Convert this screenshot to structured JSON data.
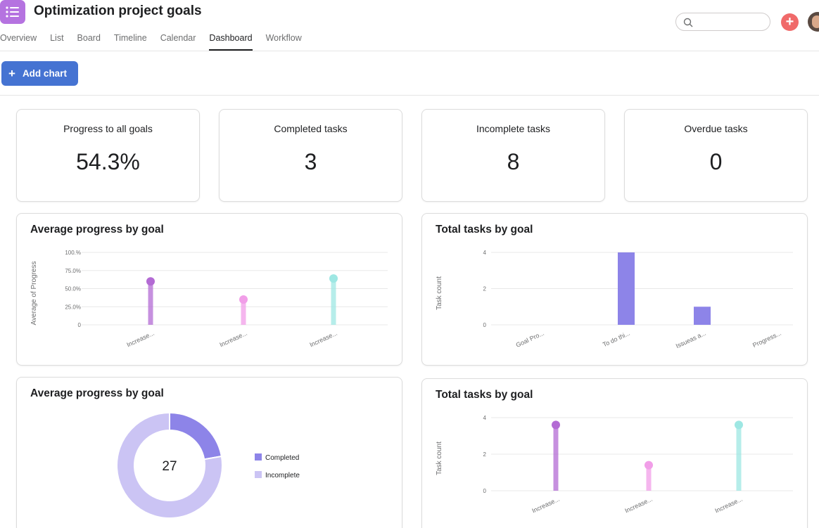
{
  "header": {
    "title": "Optimization project goals",
    "tabs": [
      {
        "label": "Overview",
        "active": false
      },
      {
        "label": "List",
        "active": false
      },
      {
        "label": "Board",
        "active": false
      },
      {
        "label": "Timeline",
        "active": false
      },
      {
        "label": "Calendar",
        "active": false
      },
      {
        "label": "Dashboard",
        "active": true
      },
      {
        "label": "Workflow",
        "active": false
      }
    ],
    "search_placeholder": "",
    "icons": {
      "app": "list-icon",
      "search": "search-icon",
      "add": "plus-icon",
      "avatar": "avatar"
    }
  },
  "toolbar": {
    "add_chart_label": "Add chart",
    "add_chart_icon": "+"
  },
  "stats": [
    {
      "label": "Progress to all goals",
      "value": "54.3%"
    },
    {
      "label": "Completed tasks",
      "value": "3"
    },
    {
      "label": "Incomplete tasks",
      "value": "8"
    },
    {
      "label": "Overdue tasks",
      "value": "0"
    }
  ],
  "colors": {
    "accent_blue": "#4573d2",
    "add_red": "#f06a6a",
    "app_purple": "#b573e0",
    "bar_purple": "#8d84e8",
    "lollipop_purple": "#b36bd4",
    "lollipop_pink": "#f19ee8",
    "lollipop_teal": "#9ee7e3",
    "donut_completed": "#8d84e8",
    "donut_incomplete": "#cbc4f4"
  },
  "chart_data": [
    {
      "type": "lollipop",
      "title": "Average progress by goal",
      "ylabel": "Average of Progress",
      "yticks": [
        "100.%",
        "75.0%",
        "50.0%",
        "25.0%",
        "0"
      ],
      "ylim": [
        0,
        100
      ],
      "categories": [
        "Increase...",
        "Increase...",
        "Increase..."
      ],
      "values": [
        60,
        35,
        64
      ],
      "colors": [
        "#b36bd4",
        "#f19ee8",
        "#9ee7e3"
      ],
      "grid": true
    },
    {
      "type": "bar",
      "title": "Total tasks by goal",
      "ylabel": "Task count",
      "yticks": [
        "4",
        "2",
        "0"
      ],
      "ylim": [
        0,
        4
      ],
      "categories": [
        "Goal Pro...",
        "To do thi...",
        "Issueas a...",
        "Progress..."
      ],
      "values": [
        0,
        4,
        1,
        0
      ],
      "color": "#8d84e8",
      "grid": true
    },
    {
      "type": "pie",
      "title": "Average progress by goal",
      "center_label": "27",
      "legend": [
        "Completed",
        "Incomplete"
      ],
      "values": [
        6,
        21
      ],
      "colors": [
        "#8d84e8",
        "#cbc4f4"
      ],
      "legend_position": "right"
    },
    {
      "type": "lollipop",
      "title": "Total tasks by goal",
      "ylabel": "Task count",
      "yticks": [
        "4",
        "2",
        "0"
      ],
      "ylim": [
        0,
        4
      ],
      "categories": [
        "Increase...",
        "Increase...",
        "Increase..."
      ],
      "values": [
        3.6,
        1.4,
        3.6
      ],
      "colors": [
        "#b36bd4",
        "#f19ee8",
        "#9ee7e3"
      ],
      "grid": true
    }
  ]
}
